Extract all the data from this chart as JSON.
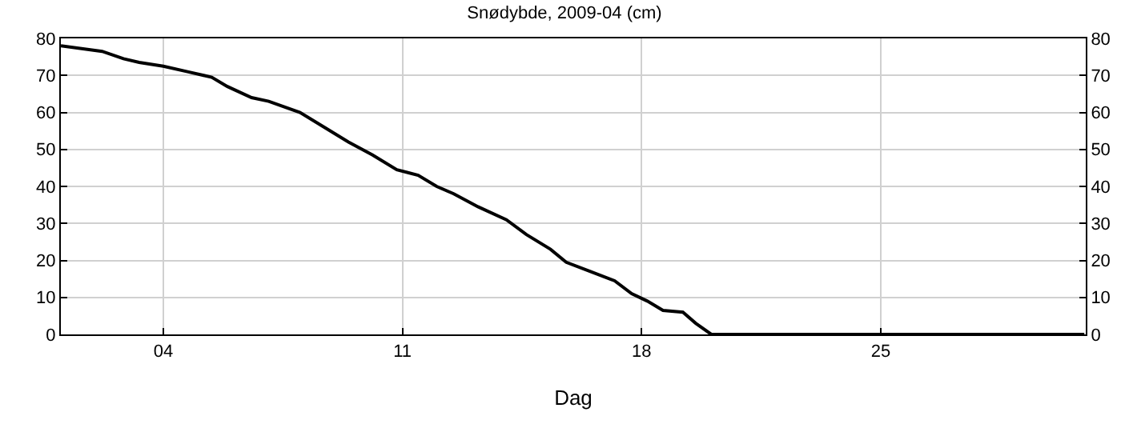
{
  "chart_data": {
    "type": "line",
    "title": "Snødybde, 2009-04 (cm)",
    "xlabel": "Dag",
    "x": [
      "2009-04-01T00:00",
      "2009-04-02T05:00",
      "2009-04-02T20:00",
      "2009-04-03T07:00",
      "2009-04-04T00:00",
      "2009-04-04T17:00",
      "2009-04-05T10:00",
      "2009-04-05T21:00",
      "2009-04-06T14:00",
      "2009-04-07T02:00",
      "2009-04-08T00:00",
      "2009-04-08T17:00",
      "2009-04-09T10:00",
      "2009-04-10T03:00",
      "2009-04-10T20:00",
      "2009-04-11T11:00",
      "2009-04-12T00:00",
      "2009-04-12T12:00",
      "2009-04-13T05:00",
      "2009-04-14T01:00",
      "2009-04-14T15:00",
      "2009-04-15T08:00",
      "2009-04-15T19:00",
      "2009-04-16T12:00",
      "2009-04-17T05:00",
      "2009-04-17T17:00",
      "2009-04-18T04:00",
      "2009-04-18T15:00",
      "2009-04-19T05:00",
      "2009-04-19T14:00",
      "2009-04-20T01:00",
      "2009-04-30T23:00"
    ],
    "series": [
      {
        "color": "#000000",
        "values": [
          78,
          76.5,
          74.5,
          73.5,
          72.5,
          71,
          69.5,
          67,
          64,
          63,
          60,
          56,
          52,
          48.5,
          44.5,
          43,
          40,
          38,
          34.5,
          31,
          27,
          23,
          19.5,
          17,
          14.5,
          11,
          9,
          6.5,
          6,
          3,
          0,
          0
        ]
      }
    ],
    "xlim": [
      "2009-04-01T00:00",
      "2009-05-01T00:00"
    ],
    "xticks": [
      {
        "value": "2009-04-04",
        "label": "04"
      },
      {
        "value": "2009-04-11",
        "label": "11"
      },
      {
        "value": "2009-04-18",
        "label": "18"
      },
      {
        "value": "2009-04-25",
        "label": "25"
      }
    ],
    "ylim": [
      0,
      80
    ],
    "yticks": [
      0,
      10,
      20,
      30,
      40,
      50,
      60,
      70,
      80
    ],
    "y2lim": [
      0,
      80
    ],
    "y2ticks": [
      0,
      10,
      20,
      30,
      40,
      50,
      60,
      70,
      80
    ],
    "grid": true,
    "marker": "none",
    "line_style": "solid"
  }
}
